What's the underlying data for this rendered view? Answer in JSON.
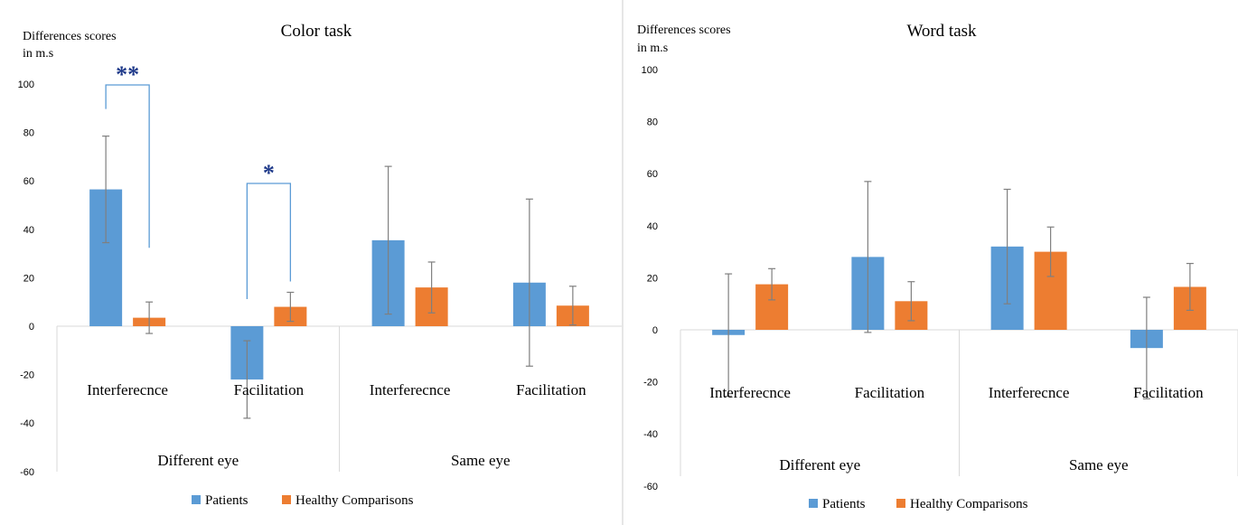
{
  "chart_data": [
    {
      "type": "bar",
      "title": "Color task",
      "ylabel": "Differences scores in m.s",
      "ylabel_lines": [
        "Differences scores",
        "in m.s"
      ],
      "ylim": [
        -60,
        100
      ],
      "yticks": [
        "-60",
        "-40",
        "-20",
        "0",
        "20",
        "40",
        "60",
        "80",
        "100"
      ],
      "categories": [
        "Interferecnce",
        "Facilitation",
        "Interferecnce",
        "Facilitation"
      ],
      "groups": [
        {
          "label": "Different eye",
          "span": [
            0,
            1
          ]
        },
        {
          "label": "Same eye",
          "span": [
            2,
            3
          ]
        }
      ],
      "series": [
        {
          "name": "Patients",
          "color": "#5B9BD5",
          "values": [
            56.5,
            -22,
            35.5,
            18
          ],
          "error": [
            22,
            16,
            30.5,
            34.5
          ]
        },
        {
          "name": "Healthy Comparisons",
          "color": "#ED7D31",
          "values": [
            3.5,
            8,
            16,
            8.5
          ],
          "error": [
            6.5,
            6,
            10.5,
            8
          ]
        }
      ],
      "significance": [
        {
          "label": "**",
          "category": 0
        },
        {
          "label": "*",
          "category": 1
        }
      ],
      "legend": "bottom",
      "grid": false
    },
    {
      "type": "bar",
      "title": "Word task",
      "ylabel": "Differences scores in m.s",
      "ylabel_lines": [
        "Differences scores",
        "in m.s"
      ],
      "ylim": [
        -60,
        100
      ],
      "yticks": [
        "-60",
        "-40",
        "-20",
        "0",
        "20",
        "40",
        "60",
        "80",
        "100"
      ],
      "categories": [
        "Interferecnce",
        "Facilitation",
        "Interferecnce",
        "Facilitation"
      ],
      "groups": [
        {
          "label": "Different eye",
          "span": [
            0,
            1
          ]
        },
        {
          "label": "Same eye",
          "span": [
            2,
            3
          ]
        }
      ],
      "series": [
        {
          "name": "Patients",
          "color": "#5B9BD5",
          "values": [
            -2,
            28,
            32,
            -7
          ],
          "error": [
            23.5,
            29,
            22,
            19.5
          ]
        },
        {
          "name": "Healthy Comparisons",
          "color": "#ED7D31",
          "values": [
            17.5,
            11,
            30,
            16.5
          ],
          "error": [
            6,
            7.5,
            9.5,
            9
          ]
        }
      ],
      "legend": "bottom",
      "grid": false
    }
  ]
}
